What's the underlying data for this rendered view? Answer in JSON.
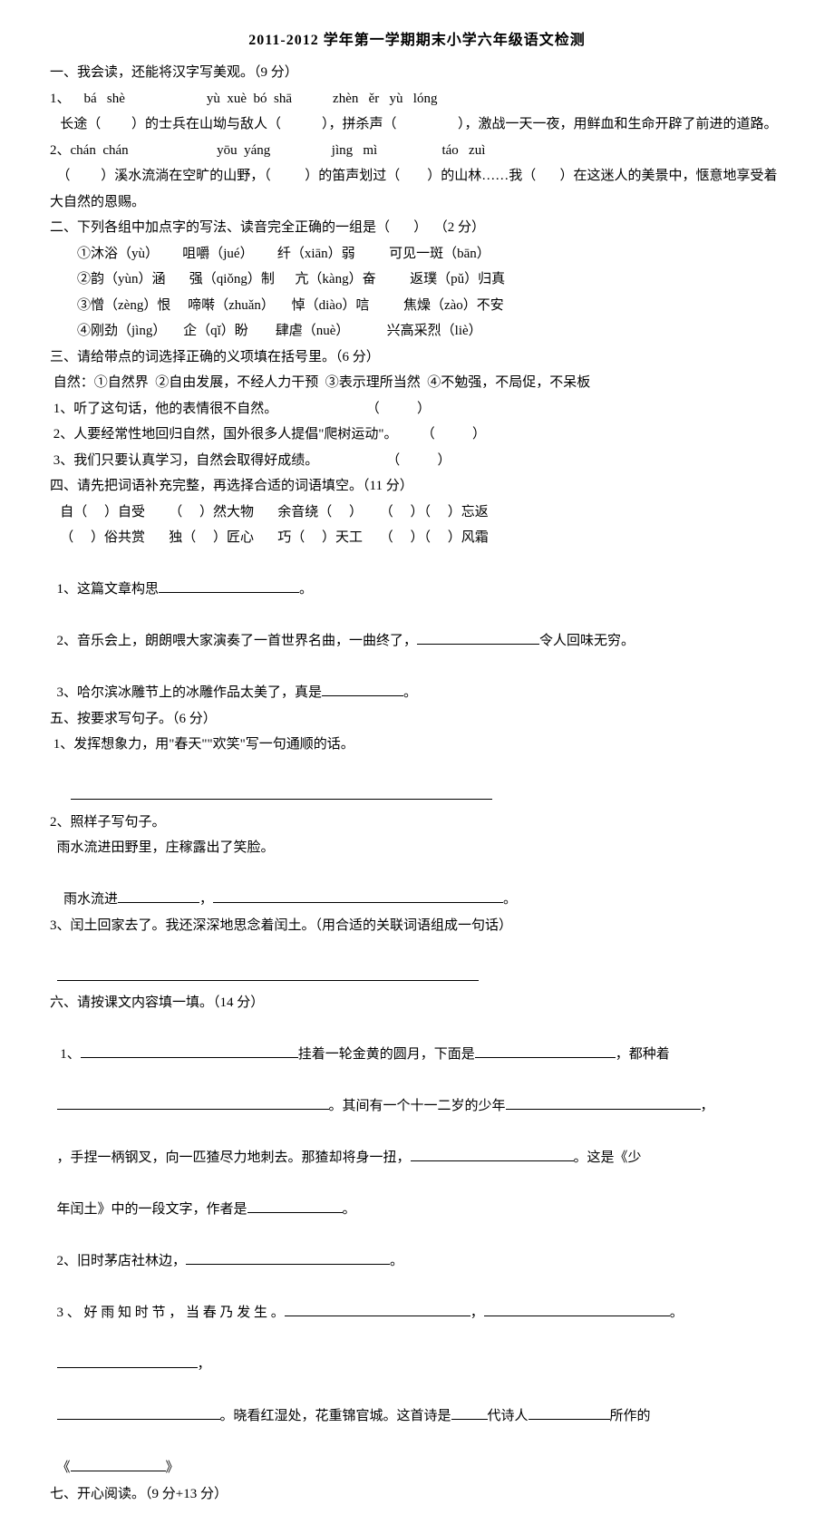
{
  "title": "2011-2012 学年第一学期期末小学六年级语文检测",
  "s1": {
    "heading": "一、我会读，还能将汉字写美观。（9 分）",
    "q1pinyin": "1、    bá   shè                        yù  xuè  bó  shā            zhèn   ěr   yù   lóng",
    "q1text": "   长途（         ）的士兵在山坳与敌人（            ），拼杀声（                  ），激战一天一夜，用鲜血和生命开辟了前进的道路。",
    "q2pinyin": "2、chán  chán                          yōu  yáng                  jìng   mì                   táo   zuì",
    "q2text": "  （         ）溪水流淌在空旷的山野，（          ）的笛声划过（        ）的山林……我（       ）在这迷人的美景中，惬意地享受着大自然的恩赐。"
  },
  "s2": {
    "heading": "二、下列各组中加点字的写法、读音完全正确的一组是（       ）  （2 分）",
    "o1": "①沐浴（yù）       咀嚼（jué）       纤（xiān）弱          可见一斑（bān）",
    "o2": "②韵（yùn）涵       强（qiǒng）制      亢（kàng）奋          返璞（pǔ）归真",
    "o3": "③憎（zèng）恨     啼啭（zhuǎn）     悼（diào）唁          焦燥（zào）不安",
    "o4": "④刚劲（jìng）     企（qǐ）盼        肆虐（nuè）           兴高采烈（liè）"
  },
  "s3": {
    "heading": "三、请给带点的词选择正确的义项填在括号里。（6 分）",
    "def": " 自然：①自然界  ②自由发展，不经人力干预  ③表示理所当然  ④不勉强，不局促，不呆板",
    "q1": " 1、听了这句话，他的表情很不自然。                          （           ）",
    "q2": " 2、人要经常性地回归自然，国外很多人提倡\"爬树运动\"。       （           ）",
    "q3": " 3、我们只要认真学习，自然会取得好成绩。                    （           ）"
  },
  "s4": {
    "heading": "四、请先把词语补充完整，再选择合适的词语填空。（11 分）",
    "row1": "   自（     ）自受       （     ）然大物       余音绕（     ）     （     ）（     ）忘返",
    "row2": "   （     ）俗共赏       独（     ）匠心       巧（     ）天工     （     ）（     ）风霜",
    "q1a": "1、这篇文章构思",
    "q1b": "。",
    "q2a": "2、音乐会上，朗朗喂大家演奏了一首世界名曲，一曲终了，",
    "q2b": "令人回味无穷。",
    "q3a": "3、哈尔滨冰雕节上的冰雕作品太美了，真是",
    "q3b": "。"
  },
  "s5": {
    "heading": "五、按要求写句子。（6 分）",
    "q1": " 1、发挥想象力，用\"春天\"\"欢笑\"写一句通顺的话。",
    "q2": "2、照样子写句子。",
    "q2ex": "  雨水流进田野里，庄稼露出了笑脸。",
    "q2a": "  雨水流进",
    "q2b": "，",
    "q2c": "。",
    "q3": "3、闰土回家去了。我还深深地思念着闰土。（用合适的关联词语组成一句话）"
  },
  "s6": {
    "heading": "六、请按课文内容填一填。（14 分）",
    "q1a": " 1、",
    "q1b": "挂着一轮金黄的圆月，下面是",
    "q1c": "，都种着",
    "q1d": "。其间有一个十一二岁的少年",
    "q1e": "，手捏一柄钢叉，向一匹猹尽力地刺去。那猹却将身一扭，",
    "q1f": "。这是《少年闰土》中的一段文字，作者是",
    "q1g": "。",
    "q2a": "2、旧时茅店社林边，",
    "q2b": "。",
    "q3a": "3 、 好 雨 知 时 节 ， 当 春 乃 发 生 。",
    "q3b": "，",
    "q3c": "。",
    "q3d": "，",
    "q3e": "。晓看红湿处，花重锦官城。这首诗是",
    "q3f": "代诗人",
    "q3g": "所作的《",
    "q3h": "》"
  },
  "s7": {
    "heading": "七、开心阅读。（9 分+13 分）"
  },
  "widths": {
    "w90": 90,
    "w105": 105,
    "w135": 135,
    "w140": 140,
    "w155": 155,
    "w180": 180,
    "w205": 205,
    "w215": 215,
    "w225": 225,
    "w240": 240,
    "w252": 252,
    "w270": 270,
    "w300": 300,
    "w320": 320,
    "w465": 465
  }
}
